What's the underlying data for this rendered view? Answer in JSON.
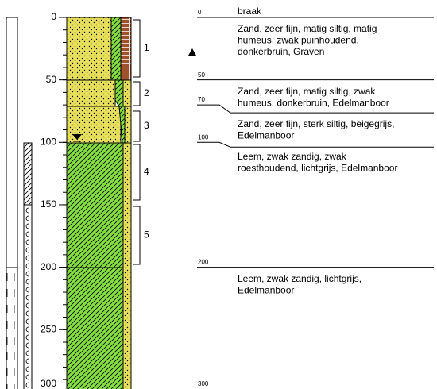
{
  "depth_scale": {
    "ticks": [
      0,
      50,
      100,
      150,
      200,
      250,
      300
    ]
  },
  "samples": [
    "1",
    "2",
    "3",
    "4",
    "5"
  ],
  "surface_note": "braak",
  "boundaries": [
    0,
    50,
    70,
    100,
    200,
    300
  ],
  "layers": [
    [
      "Zand, zeer fijn, matig siltig, matig",
      "humeus, zwak puinhoudend,",
      "donkerbruin, Graven"
    ],
    [
      "Zand, zeer fijn, matig siltig, zwak",
      "humeus, donkerbruin, Edelmanboor"
    ],
    [
      "Zand, zeer fijn, sterk siltig, beigegrijs,",
      "Edelmanboor"
    ],
    [
      "Leem, zwak zandig, zwak",
      "roesthoudend, lichtgrijs, Edelmanboor"
    ],
    [
      "Leem, zwak zandig, lichtgrijs,",
      "Edelmanboor"
    ]
  ]
}
